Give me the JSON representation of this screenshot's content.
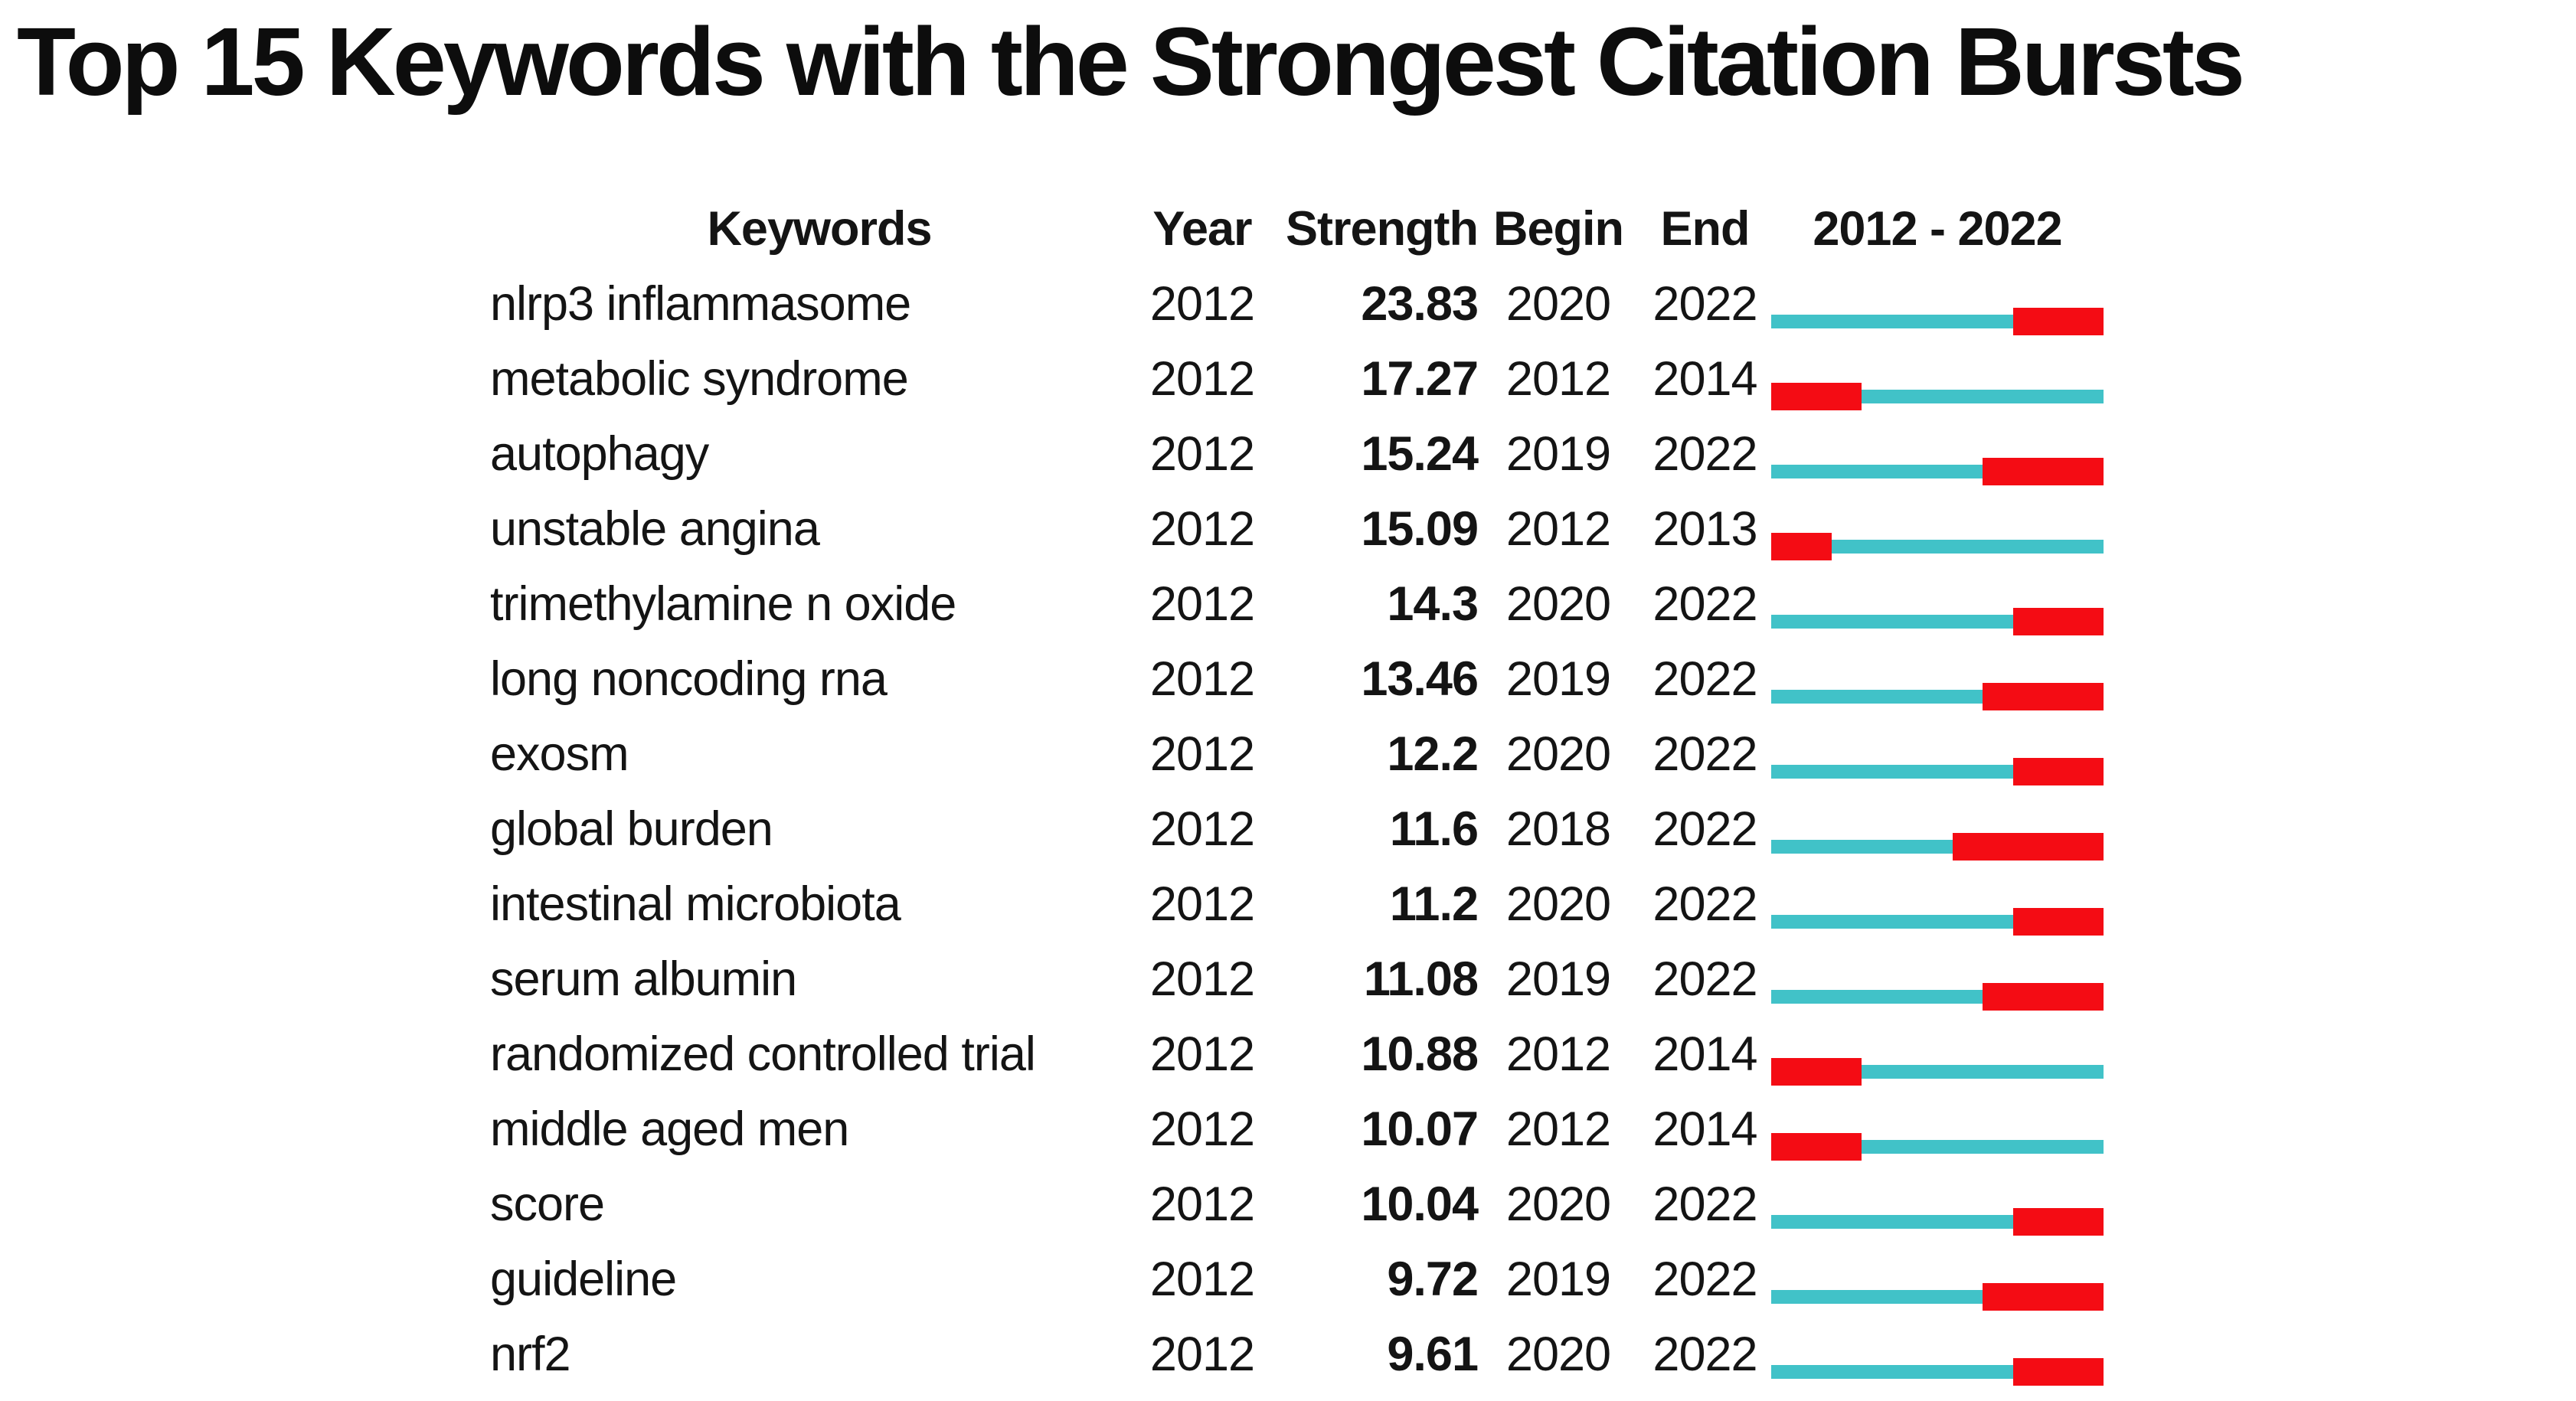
{
  "title": "Top 15 Keywords with the Strongest Citation Bursts",
  "chart_data": {
    "type": "table",
    "title": "Top 15 Keywords with the Strongest Citation Bursts",
    "columns": [
      "Keywords",
      "Year",
      "Strength",
      "Begin",
      "End",
      "2012 - 2022"
    ],
    "timeline_start": 2012,
    "timeline_end": 2022,
    "timeline_label": "2012 - 2022",
    "colors": {
      "burst_red": "#f40c14",
      "track_teal": "#41c2c8",
      "text": "#141414"
    },
    "rows": [
      {
        "keyword": "nlrp3 inflammasome",
        "year": "2012",
        "strength": "23.83",
        "begin": "2020",
        "end": "2022"
      },
      {
        "keyword": "metabolic syndrome",
        "year": "2012",
        "strength": "17.27",
        "begin": "2012",
        "end": "2014"
      },
      {
        "keyword": "autophagy",
        "year": "2012",
        "strength": "15.24",
        "begin": "2019",
        "end": "2022"
      },
      {
        "keyword": "unstable angina",
        "year": "2012",
        "strength": "15.09",
        "begin": "2012",
        "end": "2013"
      },
      {
        "keyword": "trimethylamine n oxide",
        "year": "2012",
        "strength": "14.3",
        "begin": "2020",
        "end": "2022"
      },
      {
        "keyword": "long noncoding rna",
        "year": "2012",
        "strength": "13.46",
        "begin": "2019",
        "end": "2022"
      },
      {
        "keyword": "exosm",
        "year": "2012",
        "strength": "12.2",
        "begin": "2020",
        "end": "2022"
      },
      {
        "keyword": "global burden",
        "year": "2012",
        "strength": "11.6",
        "begin": "2018",
        "end": "2022"
      },
      {
        "keyword": "intestinal microbiota",
        "year": "2012",
        "strength": "11.2",
        "begin": "2020",
        "end": "2022"
      },
      {
        "keyword": "serum albumin",
        "year": "2012",
        "strength": "11.08",
        "begin": "2019",
        "end": "2022"
      },
      {
        "keyword": "randomized controlled trial",
        "year": "2012",
        "strength": "10.88",
        "begin": "2012",
        "end": "2014"
      },
      {
        "keyword": "middle aged men",
        "year": "2012",
        "strength": "10.07",
        "begin": "2012",
        "end": "2014"
      },
      {
        "keyword": "score",
        "year": "2012",
        "strength": "10.04",
        "begin": "2020",
        "end": "2022"
      },
      {
        "keyword": "guideline",
        "year": "2012",
        "strength": "9.72",
        "begin": "2019",
        "end": "2022"
      },
      {
        "keyword": "nrf2",
        "year": "2012",
        "strength": "9.61",
        "begin": "2020",
        "end": "2022"
      }
    ]
  }
}
